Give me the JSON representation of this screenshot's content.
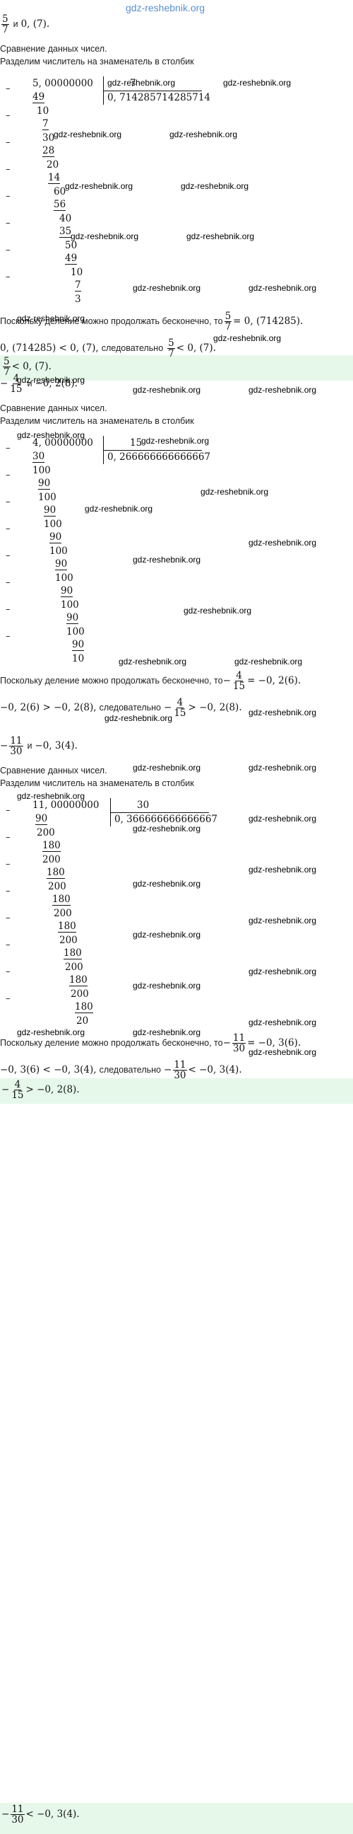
{
  "watermark_top": "gdz-reshebnik.org",
  "watermark": "gdz-reshebnik.org",
  "labels": {
    "compare": "Сравнение данных чисел.",
    "divide": "Разделим числитель на знаменатель в столбик",
    "since": "Поскольку деление можно продолжать бесконечно, то",
    "and": "и",
    "therefore": "следовательно"
  },
  "problems": [
    {
      "pair_a_num": "5",
      "pair_a_den": "7",
      "pair_a_sign": "",
      "pair_b": "0, (7).",
      "dividend": "5, 00000000",
      "divisor": "7",
      "quotient": "0, 714285714285714",
      "steps": [
        "49",
        "10",
        "7",
        "30",
        "28",
        "20",
        "14",
        "60",
        "56",
        "40",
        "35",
        "50",
        "49",
        "10",
        "7",
        "3"
      ],
      "concl_sign": "",
      "concl_num": "5",
      "concl_den": "7",
      "concl_value": "= 0, (714285).",
      "cmp_left": "0, (714285) < 0, (7),",
      "cmp_sign": "",
      "cmp_num": "5",
      "cmp_den": "7",
      "cmp_right": "< 0, (7).",
      "final_sign": "",
      "final_num": "5",
      "final_den": "7",
      "final_right": "< 0, (7)."
    },
    {
      "pair_a_num": "4",
      "pair_a_den": "15",
      "pair_a_sign": "−",
      "pair_b": "−0, 2(8).",
      "dividend": "4, 00000000",
      "divisor": "15",
      "quotient": "0, 266666666666667",
      "steps": [
        "30",
        "100",
        "90",
        "100",
        "90",
        "100",
        "90",
        "100",
        "90",
        "100",
        "90",
        "100",
        "90",
        "100",
        "90",
        "10"
      ],
      "concl_sign": "−",
      "concl_num": "4",
      "concl_den": "15",
      "concl_value": "= −0, 2(6).",
      "cmp_left": "−0, 2(6) > −0, 2(8),",
      "cmp_sign": "−",
      "cmp_num": "4",
      "cmp_den": "15",
      "cmp_right": "> −0, 2(8).",
      "final_sign": "−",
      "final_num": "4",
      "final_den": "15",
      "final_right": "> −0, 2(8)."
    },
    {
      "pair_a_num": "11",
      "pair_a_den": "30",
      "pair_a_sign": "−",
      "pair_b": "−0, 3(4).",
      "dividend": "11, 00000000",
      "divisor": "30",
      "quotient": "0, 366666666666667",
      "steps": [
        "90",
        "200",
        "180",
        "200",
        "180",
        "200",
        "180",
        "200",
        "180",
        "200",
        "180",
        "200",
        "180",
        "200",
        "180",
        "20"
      ],
      "concl_sign": "−",
      "concl_num": "11",
      "concl_den": "30",
      "concl_value": "= −0, 3(6).",
      "cmp_left": "−0, 3(6) < −0, 3(4),",
      "cmp_sign": "−",
      "cmp_num": "11",
      "cmp_den": "30",
      "cmp_right": "< −0, 3(4).",
      "final_sign": "−",
      "final_num": "11",
      "final_den": "30",
      "final_right": "< −0, 3(4)."
    }
  ]
}
